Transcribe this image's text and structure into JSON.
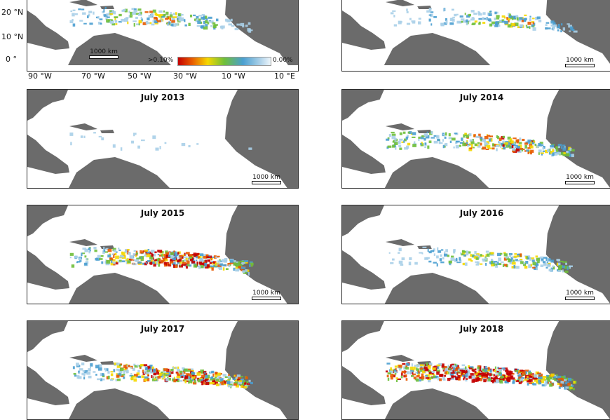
{
  "legend": {
    "high_label": ">0.10%",
    "low_label": "0.00%",
    "colors": [
      "#c40000",
      "#e85a00",
      "#f5d800",
      "#6fbf3a",
      "#4a9fd0",
      "#a9cfe8",
      "#eef6fb"
    ]
  },
  "axes": {
    "lat_labels": [
      "20 °N",
      "10 °N",
      "0 °"
    ],
    "lon_labels": [
      "90 °W",
      "70 °W",
      "50 °W",
      "30 °W",
      "10 °W",
      "10 °E"
    ]
  },
  "scale_label": "1000 km",
  "land_color": "#6b6b6b",
  "panels": [
    {
      "title": "",
      "density": [
        0.2,
        0.35,
        0.5,
        0.3,
        0.15
      ]
    },
    {
      "title": "",
      "density": [
        0.1,
        0.2,
        0.35,
        0.45,
        0.2
      ]
    },
    {
      "title": "July 2013",
      "density": [
        0.05,
        0.05,
        0.03,
        0.02,
        0.01
      ]
    },
    {
      "title": "July 2014",
      "density": [
        0.35,
        0.3,
        0.5,
        0.6,
        0.4
      ]
    },
    {
      "title": "July 2015",
      "density": [
        0.3,
        0.6,
        0.85,
        0.8,
        0.5
      ]
    },
    {
      "title": "July 2016",
      "density": [
        0.1,
        0.25,
        0.4,
        0.45,
        0.35
      ]
    },
    {
      "title": "July 2017",
      "density": [
        0.25,
        0.5,
        0.7,
        0.8,
        0.6
      ]
    },
    {
      "title": "July 2018",
      "density": [
        0.6,
        0.9,
        0.95,
        0.85,
        0.55
      ]
    }
  ]
}
